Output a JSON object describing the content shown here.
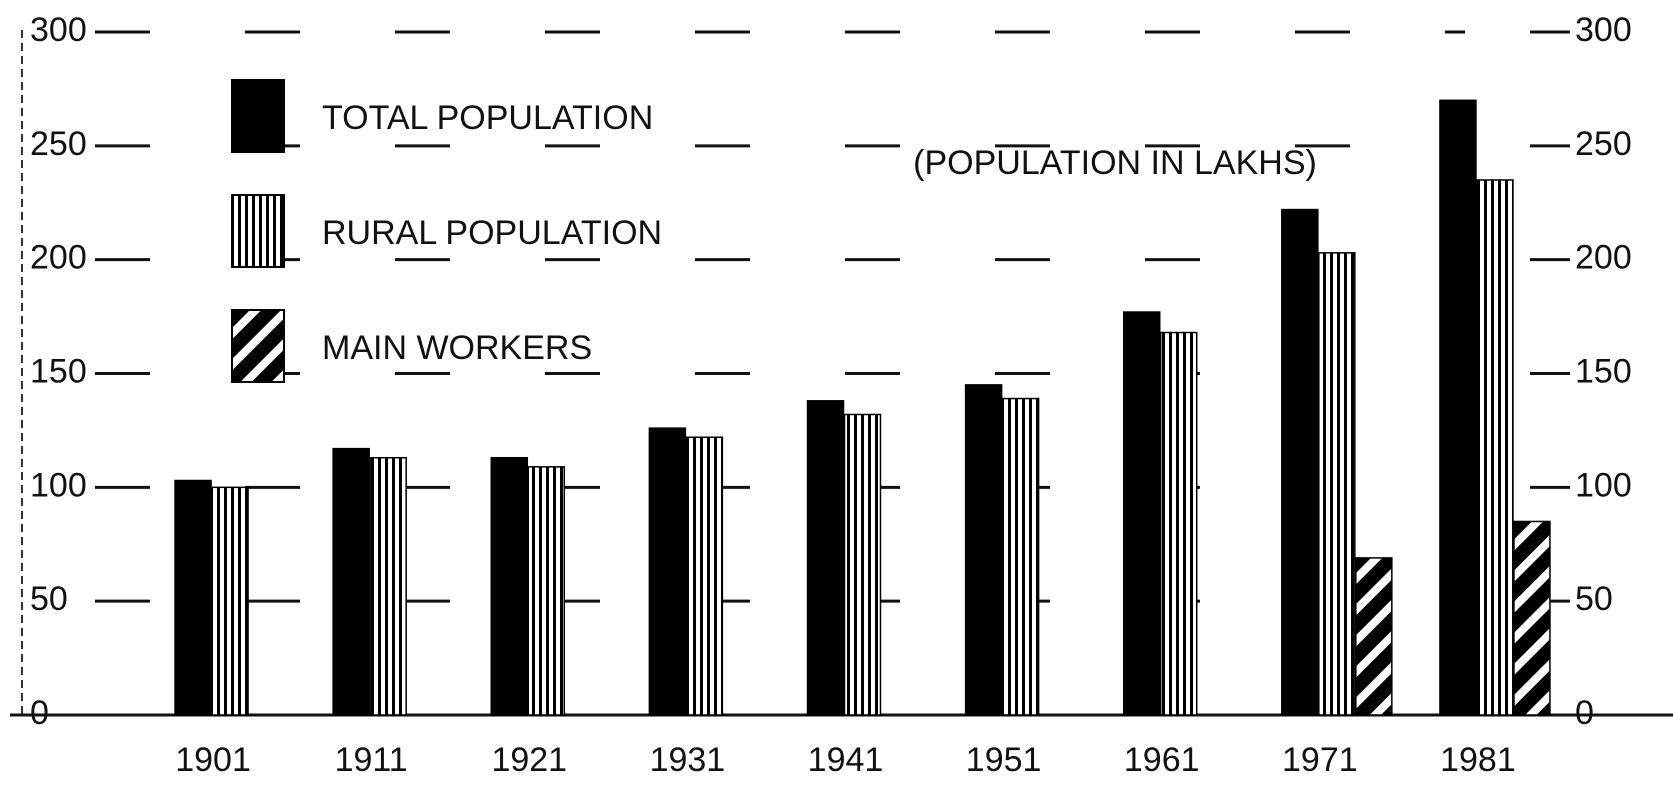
{
  "chart_data": {
    "type": "bar",
    "annotation": "(POPULATION IN LAKHS)",
    "categories": [
      "1901",
      "1911",
      "1921",
      "1931",
      "1941",
      "1951",
      "1961",
      "1971",
      "1981"
    ],
    "series": [
      {
        "name": "TOTAL POPULATION",
        "color": "#000000",
        "pattern": "solid",
        "values": [
          103,
          117,
          113,
          126,
          138,
          145,
          177,
          222,
          270
        ]
      },
      {
        "name": "RURAL POPULATION",
        "color": "#000000",
        "pattern": "vertical",
        "values": [
          100,
          113,
          109,
          122,
          132,
          139,
          168,
          203,
          235
        ]
      },
      {
        "name": "MAIN WORKERS",
        "color": "#000000",
        "pattern": "diagonal",
        "values": [
          null,
          null,
          null,
          null,
          null,
          null,
          null,
          69,
          85
        ]
      }
    ],
    "ylim": [
      0,
      300
    ],
    "yticks": [
      0,
      50,
      100,
      150,
      200,
      250,
      300
    ],
    "y2lim": [
      0,
      300
    ],
    "y2ticks": [
      0,
      50,
      100,
      150,
      200,
      250,
      300
    ],
    "grid": true,
    "legend": "top-left"
  }
}
